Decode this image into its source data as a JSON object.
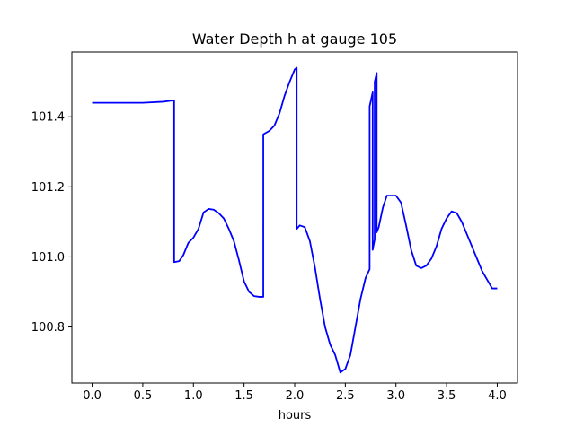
{
  "chart_data": {
    "type": "line",
    "title": "Water Depth h at gauge 105",
    "xlabel": "hours",
    "ylabel": "",
    "xlim": [
      -0.2,
      4.2
    ],
    "ylim": [
      100.64,
      101.585
    ],
    "grid": false,
    "xticks": [
      0.0,
      0.5,
      1.0,
      1.5,
      2.0,
      2.5,
      3.0,
      3.5,
      4.0
    ],
    "xtick_labels": [
      "0.0",
      "0.5",
      "1.0",
      "1.5",
      "2.0",
      "2.5",
      "3.0",
      "3.5",
      "4.0"
    ],
    "yticks": [
      100.8,
      101.0,
      101.2,
      101.4
    ],
    "ytick_labels": [
      "100.8",
      "101.0",
      "101.2",
      "101.4"
    ],
    "series": [
      {
        "color": "#0000ff",
        "x": [
          0.0,
          0.3,
          0.5,
          0.7,
          0.81,
          0.81,
          0.86,
          0.9,
          0.95,
          1.0,
          1.05,
          1.1,
          1.15,
          1.2,
          1.25,
          1.3,
          1.35,
          1.4,
          1.45,
          1.5,
          1.55,
          1.6,
          1.65,
          1.69,
          1.69,
          1.75,
          1.8,
          1.85,
          1.9,
          1.95,
          2.0,
          2.02,
          2.02,
          2.05,
          2.1,
          2.15,
          2.2,
          2.25,
          2.3,
          2.35,
          2.4,
          2.45,
          2.5,
          2.55,
          2.6,
          2.65,
          2.7,
          2.74,
          2.74,
          2.77,
          2.77,
          2.79,
          2.79,
          2.81,
          2.81,
          2.83,
          2.83,
          2.87,
          2.91,
          2.95,
          3.0,
          3.05,
          3.1,
          3.15,
          3.2,
          3.25,
          3.3,
          3.35,
          3.4,
          3.45,
          3.5,
          3.55,
          3.6,
          3.65,
          3.7,
          3.75,
          3.8,
          3.85,
          3.9,
          3.95,
          4.0
        ],
        "y": [
          101.44,
          101.44,
          101.44,
          101.443,
          101.447,
          100.985,
          100.988,
          101.005,
          101.04,
          101.055,
          101.08,
          101.127,
          101.137,
          101.135,
          101.125,
          101.11,
          101.08,
          101.045,
          100.99,
          100.93,
          100.9,
          100.888,
          100.886,
          100.886,
          101.35,
          101.36,
          101.375,
          101.41,
          101.46,
          101.5,
          101.535,
          101.54,
          101.08,
          101.09,
          101.085,
          101.045,
          100.97,
          100.88,
          100.8,
          100.75,
          100.72,
          100.67,
          100.68,
          100.72,
          100.8,
          100.88,
          100.94,
          100.965,
          101.43,
          101.47,
          101.02,
          101.05,
          101.5,
          101.525,
          101.07,
          101.085,
          101.085,
          101.14,
          101.175,
          101.175,
          101.175,
          101.155,
          101.09,
          101.02,
          100.975,
          100.968,
          100.975,
          100.995,
          101.03,
          101.08,
          101.11,
          101.13,
          101.125,
          101.1,
          101.065,
          101.03,
          100.995,
          100.96,
          100.935,
          100.91,
          100.91
        ]
      }
    ]
  }
}
